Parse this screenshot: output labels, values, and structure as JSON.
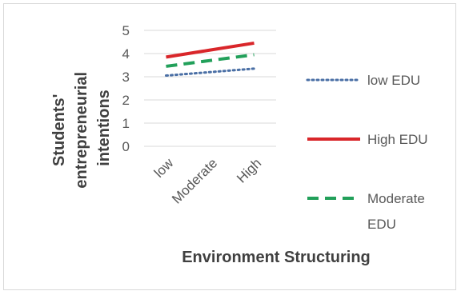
{
  "chart_data": {
    "type": "line",
    "categories": [
      "low",
      "Moderate",
      "High"
    ],
    "xlabel": "Environment Structuring",
    "ylabel_lines": [
      "Students'",
      "entrepreneurial",
      "intentions"
    ],
    "ylim": [
      0,
      5
    ],
    "yticks": [
      "0",
      "1",
      "2",
      "3",
      "4",
      "5"
    ],
    "grid": true,
    "legend_position": "right",
    "series": [
      {
        "name": "low EDU",
        "legend_lines": [
          "low EDU"
        ],
        "values": [
          3.05,
          3.2,
          3.35
        ],
        "color": "#4a6fa5",
        "dash": "dotted"
      },
      {
        "name": "High EDU",
        "legend_lines": [
          "High EDU"
        ],
        "values": [
          3.85,
          4.15,
          4.45
        ],
        "color": "#d9262a",
        "dash": "solid"
      },
      {
        "name": "Moderate EDU",
        "legend_lines": [
          "Moderate",
          "EDU"
        ],
        "values": [
          3.45,
          3.7,
          3.95
        ],
        "color": "#22a05a",
        "dash": "dashed"
      }
    ]
  }
}
